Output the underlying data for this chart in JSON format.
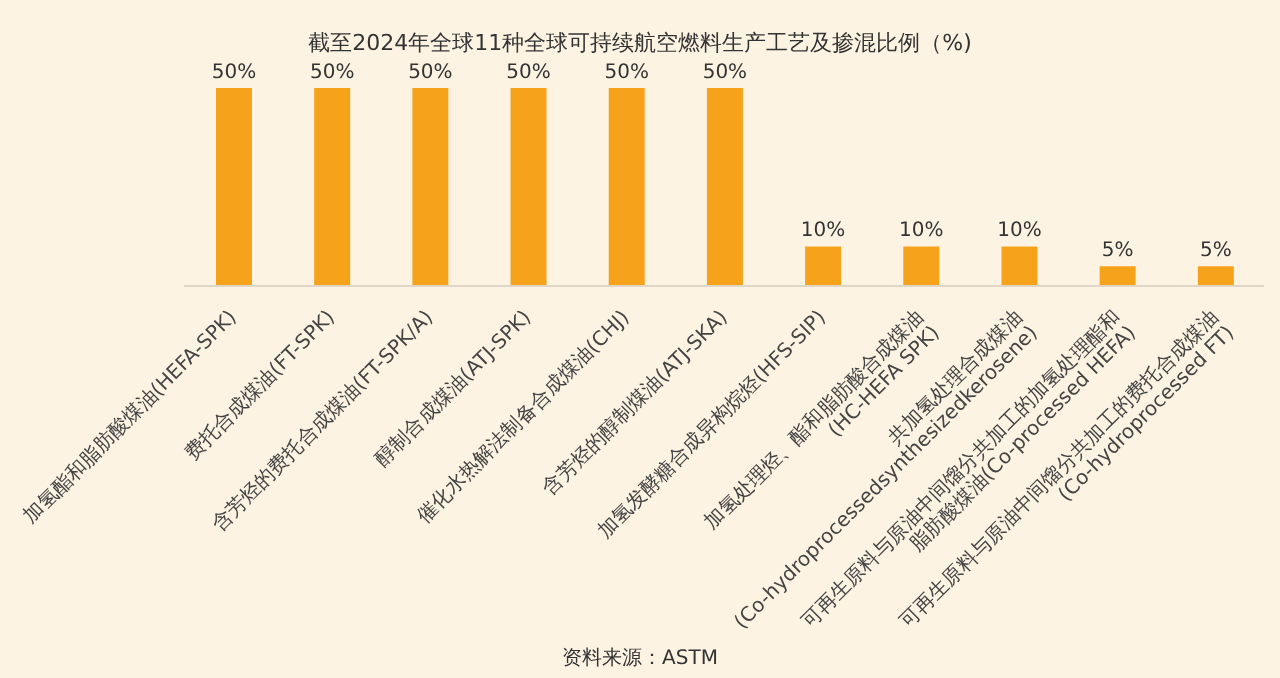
{
  "chart_data": {
    "type": "bar",
    "title": "截至2024年全球11种全球可持续航空燃料生产工艺及掺混比例（%)",
    "categories": [
      "加氢酯和脂肪酸煤油(HEFA-SPK)",
      "费托合成煤油(FT-SPK)",
      "含芳烃的费托合成煤油(FT-SPK/A)",
      "醇制合成煤油(ATJ-SPK)",
      "催化水热解法制备合成煤油(CHJ)",
      "含芳烃的醇制煤油(ATJ-SKA)",
      "加氢发酵糖合成异构烷烃(HFS-SIP)",
      "加氢处理烃、酯和脂肪酸合成煤油(HC-HEFA SPK)",
      "共加氢处理合成煤油(Co-hydroprocessedsynthesizedkerosene)",
      "可再生原料与原油中间馏分共加工的加氢处理酯和脂肪酸煤油(Co-processed HEFA)",
      "可再生原料与原油中间馏分共加工的费托合成煤油(Co-hydroprocessed FT)"
    ],
    "values": [
      50,
      50,
      50,
      50,
      50,
      50,
      10,
      10,
      10,
      5,
      5
    ],
    "value_labels": [
      "50%",
      "50%",
      "50%",
      "50%",
      "50%",
      "50%",
      "10%",
      "10%",
      "10%",
      "5%",
      "5%"
    ],
    "color": "#f7a21b",
    "annotations": [
      "资料来源：ASTM"
    ]
  }
}
